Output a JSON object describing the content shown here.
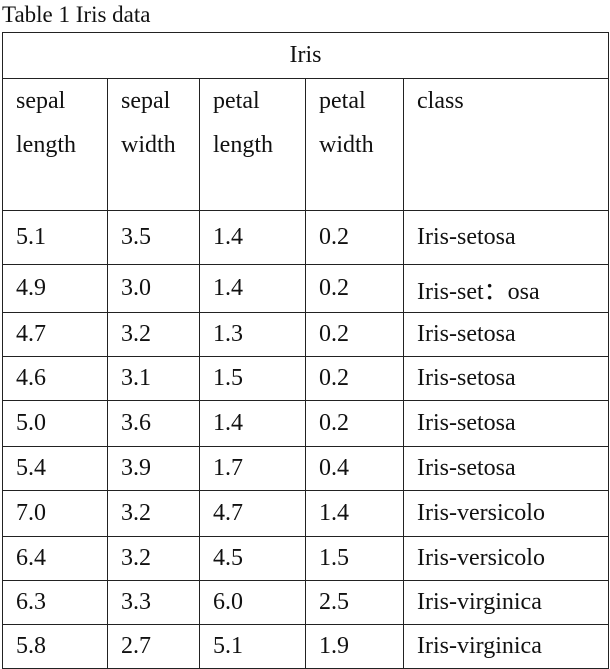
{
  "caption": "Table 1 Iris data",
  "table": {
    "title": "Iris",
    "header": [
      "sepal length",
      "sepal width",
      "petal length",
      "petal width",
      "class"
    ],
    "rows": [
      [
        "5.1",
        "3.5",
        "1.4",
        "0.2",
        "Iris-setosa"
      ],
      [
        "4.9",
        "3.0",
        "1.4",
        "0.2",
        "Iris-set：osa"
      ],
      [
        "4.7",
        "3.2",
        "1.3",
        "0.2",
        "Iris-setosa"
      ],
      [
        "4.6",
        "3.1",
        "1.5",
        "0.2",
        "Iris-setosa"
      ],
      [
        "5.0",
        "3.6",
        "1.4",
        "0.2",
        "Iris-setosa"
      ],
      [
        "5.4",
        "3.9",
        "1.7",
        "0.4",
        "Iris-setosa"
      ],
      [
        "7.0",
        "3.2",
        "4.7",
        "1.4",
        "Iris-versicolo"
      ],
      [
        "6.4",
        "3.2",
        "4.5",
        "1.5",
        "Iris-versicolo"
      ],
      [
        "6.3",
        "3.3",
        "6.0",
        "2.5",
        "Iris-virginica"
      ],
      [
        "5.8",
        "2.7",
        "5.1",
        "1.9",
        "Iris-virginica"
      ]
    ]
  }
}
